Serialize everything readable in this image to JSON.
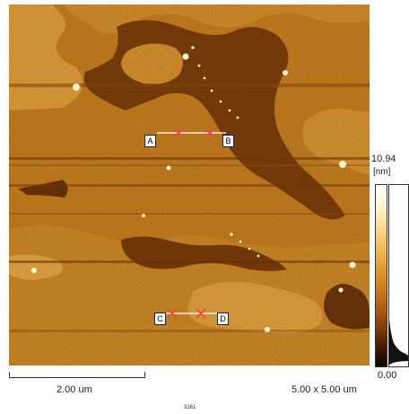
{
  "image": {
    "subject": "atomic-force-microscopy-topography",
    "colors": {
      "light": "#e9a33c",
      "mid": "#c77a1f",
      "dark": "#7a3e08",
      "shadow": "#3a1803",
      "particle": "#fff4cf"
    }
  },
  "markers": {
    "a": "A",
    "b": "B",
    "c": "C",
    "d": "D"
  },
  "colorbar": {
    "max_label": "10.94",
    "unit_label": "[nm]",
    "min_label": "0.00"
  },
  "scale": {
    "bar_label": "2.00 um",
    "scan_size_label": "5.00 x 5.00 um"
  },
  "footer": {
    "id_label": "3161"
  }
}
